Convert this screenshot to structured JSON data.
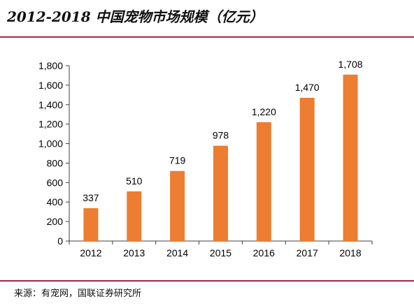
{
  "title": "2012-2018 中国宠物市场规模（亿元）",
  "source": "来源：有宠网，国联证券研究所",
  "colors": {
    "bar": "#ed7d31",
    "accent_rule": "#a32a3f",
    "axis": "#404040"
  },
  "chart_data": {
    "type": "bar",
    "title": "",
    "xlabel": "",
    "ylabel": "",
    "categories": [
      "2012",
      "2013",
      "2014",
      "2015",
      "2016",
      "2017",
      "2018"
    ],
    "values": [
      337,
      510,
      719,
      978,
      1220,
      1470,
      1708
    ],
    "value_labels": [
      "337",
      "510",
      "719",
      "978",
      "1,220",
      "1,470",
      "1,708"
    ],
    "ylim": [
      0,
      1800
    ],
    "yticks": [
      0,
      200,
      400,
      600,
      800,
      1000,
      1200,
      1400,
      1600,
      1800
    ],
    "ytick_labels": [
      "0",
      "200",
      "400",
      "600",
      "800",
      "1,000",
      "1,200",
      "1,400",
      "1,600",
      "1,800"
    ],
    "grid": false,
    "legend": "none"
  }
}
